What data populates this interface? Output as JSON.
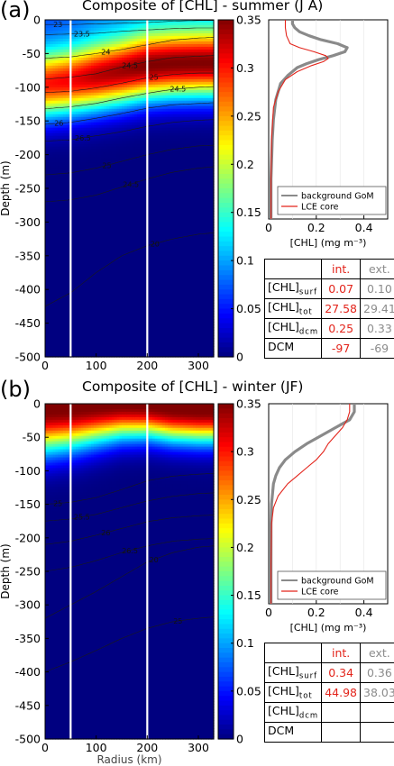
{
  "chart_data": [
    {
      "id": "a",
      "type": "heatmap",
      "panel_label": "(a)",
      "title": "Composite of [CHL] - summer (J A)",
      "xlabel": "",
      "ylabel": "Depth (m)",
      "xlim": [
        0,
        330
      ],
      "ylim": [
        -500,
        0
      ],
      "xticks": [
        0,
        100,
        200,
        300
      ],
      "yticks": [
        0,
        -50,
        -100,
        -150,
        -200,
        -250,
        -300,
        -350,
        -400,
        -450,
        -500
      ],
      "vertical_lines_km": [
        50,
        200
      ],
      "colorbar": {
        "vmin": 0,
        "vmax": 0.35,
        "ticks": [
          0,
          0.05,
          0.1,
          0.15,
          0.2,
          0.25,
          0.3,
          0.35
        ]
      },
      "field": {
        "radius_km": [
          0,
          50,
          100,
          150,
          200,
          250,
          300,
          330
        ],
        "dcm_depth_m": [
          -95,
          -90,
          -83,
          -76,
          -68,
          -65,
          -64,
          -64
        ],
        "dcm_value": [
          0.3,
          0.31,
          0.33,
          0.34,
          0.35,
          0.35,
          0.35,
          0.35
        ],
        "surface_value": [
          0.07,
          0.075,
          0.085,
          0.09,
          0.1,
          0.1,
          0.1,
          0.1
        ],
        "upper_width_m": 45,
        "lower_width_m": 50
      },
      "contours": [
        {
          "label": "23",
          "depth_m": [
            -7,
            -7,
            -6,
            -5,
            -4,
            -2,
            -1,
            -1
          ]
        },
        {
          "label": "23.5",
          "depth_m": [
            -22,
            -21,
            -20,
            -17,
            -15,
            -13,
            -12,
            -12
          ]
        },
        {
          "label": "24",
          "depth_m": [
            -57,
            -55,
            -50,
            -44,
            -37,
            -30,
            -27,
            -26
          ]
        },
        {
          "label": "24.5",
          "depth_m": [
            -88,
            -85,
            -80,
            -70,
            -62,
            -56,
            -54,
            -53
          ]
        },
        {
          "label": "25",
          "depth_m": [
            -108,
            -106,
            -101,
            -94,
            -86,
            -81,
            -79,
            -79
          ]
        },
        {
          "label": "24.5",
          "depth_m": [
            -132,
            -129,
            -124,
            -116,
            -109,
            -103,
            -100,
            -99
          ]
        },
        {
          "label": "26",
          "depth_m": [
            -155,
            -152,
            -146,
            -139,
            -131,
            -126,
            -124,
            -123
          ]
        },
        {
          "label": "26.5",
          "depth_m": [
            -180,
            -178,
            -172,
            -166,
            -158,
            -152,
            -149,
            -148
          ]
        },
        {
          "label": "25",
          "depth_m": [
            -230,
            -227,
            -220,
            -210,
            -200,
            -192,
            -187,
            -186
          ]
        },
        {
          "label": "24.5",
          "depth_m": [
            -270,
            -267,
            -260,
            -248,
            -236,
            -226,
            -220,
            -218
          ]
        },
        {
          "label": "20",
          "depth_m": [
            -425,
            -405,
            -375,
            -350,
            -335,
            -325,
            -318,
            -316
          ]
        }
      ],
      "profile": {
        "xlabel": "[CHL] (mg m⁻³)",
        "xlim": [
          0,
          0.5
        ],
        "xticks": [
          "0",
          "0.2",
          "0.4"
        ],
        "ylim": [
          -500,
          0
        ],
        "legend": [
          "background GoM",
          "LCE core"
        ],
        "series": [
          {
            "name": "background GoM",
            "color": "#8a8a8a",
            "depth_m": [
              0,
              -10,
              -20,
              -30,
              -40,
              -50,
              -60,
              -70,
              -80,
              -90,
              -100,
              -110,
              -120,
              -140,
              -160,
              -200,
              -250,
              -300,
              -400,
              -500
            ],
            "values": [
              0.1,
              0.1,
              0.11,
              0.13,
              0.17,
              0.22,
              0.29,
              0.33,
              0.32,
              0.27,
              0.21,
              0.16,
              0.12,
              0.08,
              0.05,
              0.03,
              0.02,
              0.015,
              0.01,
              0.01
            ]
          },
          {
            "name": "LCE core",
            "color": "#e3241b",
            "depth_m": [
              0,
              -20,
              -40,
              -60,
              -70,
              -80,
              -90,
              -97,
              -105,
              -115,
              -130,
              -150,
              -180,
              -220,
              -300,
              -400,
              -500
            ],
            "values": [
              0.07,
              0.07,
              0.075,
              0.09,
              0.13,
              0.19,
              0.24,
              0.25,
              0.23,
              0.18,
              0.12,
              0.07,
              0.04,
              0.02,
              0.012,
              0.01,
              0.01
            ]
          }
        ]
      },
      "table": {
        "headers": [
          "",
          "int.",
          "ext."
        ],
        "rows": [
          {
            "base": "[CHL]",
            "sub": "surf",
            "int": "0.07",
            "ext": "0.10"
          },
          {
            "base": "[CHL]",
            "sub": "tot",
            "int": "27.58",
            "ext": "29.41"
          },
          {
            "base": "[CHL]",
            "sub": "dcm",
            "int": "0.25",
            "ext": "0.33"
          },
          {
            "base": "DCM",
            "sub": "",
            "int": "-97",
            "ext": "-69"
          }
        ]
      }
    },
    {
      "id": "b",
      "type": "heatmap",
      "panel_label": "(b)",
      "title": "Composite of [CHL] - winter (JF)",
      "xlabel": "Radius (km)",
      "ylabel": "Depth (m)",
      "xlim": [
        0,
        330
      ],
      "ylim": [
        -500,
        0
      ],
      "xticks": [
        0,
        100,
        200,
        300
      ],
      "yticks": [
        0,
        -50,
        -100,
        -150,
        -200,
        -250,
        -300,
        -350,
        -400,
        -450,
        -500
      ],
      "vertical_lines_km": [
        50,
        200
      ],
      "colorbar": {
        "vmin": 0,
        "vmax": 0.35,
        "ticks": [
          0,
          0.05,
          0.1,
          0.15,
          0.2,
          0.25,
          0.3,
          0.35
        ]
      },
      "field": {
        "radius_km": [
          0,
          50,
          100,
          150,
          200,
          250,
          300,
          330
        ],
        "mixed_depth_m": [
          -12,
          -10,
          -6,
          -3,
          -4,
          -10,
          -12,
          -12
        ],
        "decay_scale_m": [
          55,
          52,
          48,
          44,
          42,
          42,
          42,
          42
        ],
        "surface_value": [
          0.35,
          0.35,
          0.35,
          0.35,
          0.35,
          0.35,
          0.35,
          0.35
        ]
      },
      "contours": [
        {
          "label": "25",
          "depth_m": [
            -150,
            -147,
            -140,
            -128,
            -115,
            -108,
            -105,
            -104
          ]
        },
        {
          "label": "25.5",
          "depth_m": [
            -175,
            -172,
            -165,
            -155,
            -145,
            -138,
            -134,
            -133
          ]
        },
        {
          "label": "26",
          "depth_m": [
            -210,
            -205,
            -196,
            -186,
            -176,
            -170,
            -167,
            -166
          ]
        },
        {
          "label": "26.5",
          "depth_m": [
            -250,
            -244,
            -234,
            -222,
            -212,
            -205,
            -202,
            -201
          ]
        },
        {
          "label": "20",
          "depth_m": [
            -320,
            -300,
            -280,
            -258,
            -236,
            -222,
            -214,
            -212
          ]
        },
        {
          "label": "25",
          "depth_m": [
            -400,
            -385,
            -368,
            -350,
            -335,
            -325,
            -320,
            -318
          ]
        }
      ],
      "profile": {
        "xlabel": "[CHL] (mg m⁻³)",
        "xlim": [
          0,
          0.5
        ],
        "xticks": [
          "0",
          "0.2",
          "0.4"
        ],
        "ylim": [
          -500,
          0
        ],
        "legend": [
          "background GoM",
          "LCE core"
        ],
        "series": [
          {
            "name": "background GoM",
            "color": "#8a8a8a",
            "depth_m": [
              0,
              -20,
              -40,
              -60,
              -80,
              -100,
              -120,
              -140,
              -160,
              -180,
              -200,
              -250,
              -300,
              -400,
              -500
            ],
            "values": [
              0.36,
              0.36,
              0.34,
              0.28,
              0.22,
              0.16,
              0.11,
              0.07,
              0.045,
              0.03,
              0.02,
              0.012,
              0.01,
              0.01,
              0.01
            ]
          },
          {
            "name": "LCE core",
            "color": "#e3241b",
            "depth_m": [
              0,
              -20,
              -40,
              -60,
              -80,
              -100,
              -120,
              -140,
              -160,
              -180,
              -200,
              -230,
              -260,
              -300,
              -400,
              -500
            ],
            "values": [
              0.34,
              0.34,
              0.33,
              0.31,
              0.28,
              0.25,
              0.23,
              0.2,
              0.16,
              0.12,
              0.08,
              0.04,
              0.02,
              0.012,
              0.01,
              0.01
            ]
          }
        ]
      },
      "table": {
        "headers": [
          "",
          "int.",
          "ext."
        ],
        "rows": [
          {
            "base": "[CHL]",
            "sub": "surf",
            "int": "0.34",
            "ext": "0.36"
          },
          {
            "base": "[CHL]",
            "sub": "tot",
            "int": "44.98",
            "ext": "38.03"
          },
          {
            "base": "[CHL]",
            "sub": "dcm",
            "int": "",
            "ext": ""
          },
          {
            "base": "DCM",
            "sub": "",
            "int": "",
            "ext": ""
          }
        ]
      }
    }
  ]
}
